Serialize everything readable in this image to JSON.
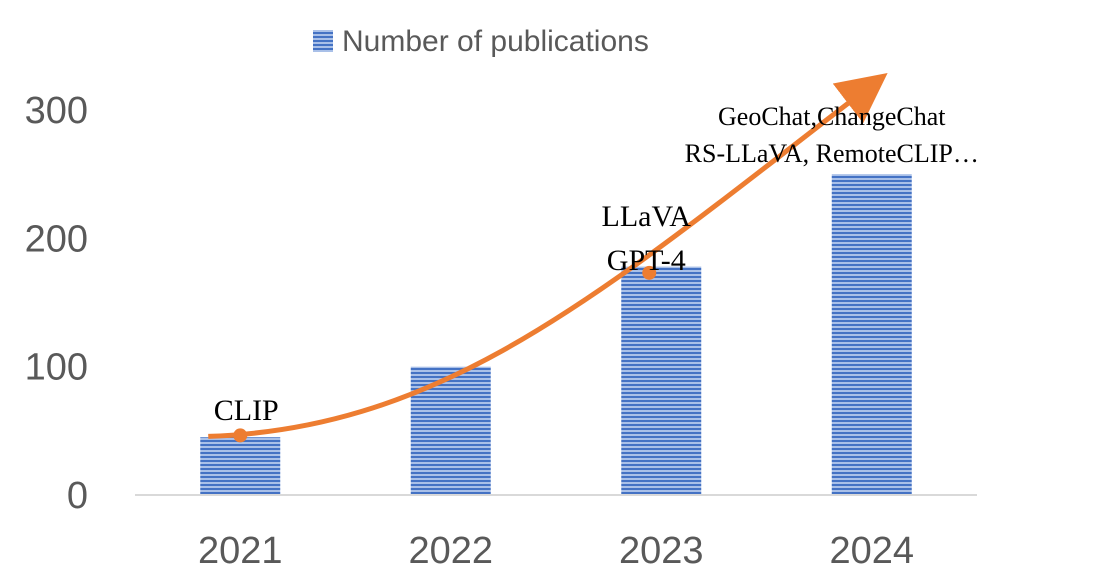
{
  "chart_data": {
    "type": "bar",
    "categories": [
      "2021",
      "2022",
      "2023",
      "2024"
    ],
    "series": [
      {
        "name": "Number of publications",
        "values": [
          45,
          100,
          178,
          250
        ]
      }
    ],
    "ylim": [
      0,
      300
    ],
    "yticks": [
      0,
      100,
      200,
      300
    ],
    "grid": false,
    "legend_position": "top",
    "bar_color": "#4472C4",
    "trend_color": "#ED7D31",
    "annotations": [
      {
        "category": "2021",
        "value": 48,
        "lines": [
          "CLIP"
        ]
      },
      {
        "category": "2023",
        "value": 170,
        "lines": [
          "LLaVA",
          "GPT-4"
        ]
      },
      {
        "category": "2024",
        "value": 310,
        "lines": [
          "GeoChat,ChangeChat",
          "RS-LLaVA, RemoteCLIP…"
        ]
      }
    ]
  }
}
